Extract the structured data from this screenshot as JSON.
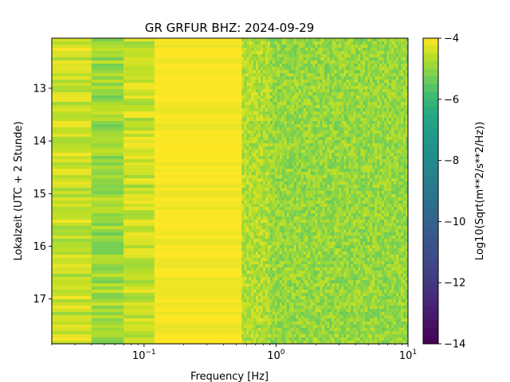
{
  "chart_data": {
    "type": "heatmap",
    "title": "GR GRFUR  BHZ: 2024-09-29",
    "xlabel": "Frequency [Hz]",
    "ylabel": "Lokalzeit (UTC + 2 Stunde)",
    "x_scale": "log",
    "xlim": [
      0.02,
      10
    ],
    "ylim": [
      17.85,
      12.05
    ],
    "x_ticks": [
      {
        "value": 0.1,
        "base": "10",
        "exp": "−1"
      },
      {
        "value": 1,
        "base": "10",
        "exp": "0"
      },
      {
        "value": 10,
        "base": "10",
        "exp": "1"
      }
    ],
    "y_ticks": [
      {
        "value": 13,
        "label": "13"
      },
      {
        "value": 14,
        "label": "14"
      },
      {
        "value": 15,
        "label": "15"
      },
      {
        "value": 16,
        "label": "16"
      },
      {
        "value": 17,
        "label": "17"
      }
    ],
    "colorbar": {
      "label": "Log10(Sqrt(m**2/s**2/Hz))",
      "colormap": "viridis",
      "range": [
        -14,
        -4
      ],
      "ticks": [
        {
          "value": -4,
          "label": "−4"
        },
        {
          "value": -6,
          "label": "−6"
        },
        {
          "value": -8,
          "label": "−8"
        },
        {
          "value": -10,
          "label": "−10"
        },
        {
          "value": -12,
          "label": "−12"
        },
        {
          "value": -14,
          "label": "−14"
        }
      ]
    },
    "frequency_bands": [
      {
        "f_min": 0.02,
        "f_max": 0.04,
        "level": -4.5
      },
      {
        "f_min": 0.04,
        "f_max": 0.07,
        "level": -4.9
      },
      {
        "f_min": 0.07,
        "f_max": 0.12,
        "level": -4.5
      },
      {
        "f_min": 0.12,
        "f_max": 0.55,
        "level": -4.05
      },
      {
        "f_min": 0.55,
        "f_max": 0.9,
        "level": -4.7
      },
      {
        "f_min": 0.9,
        "f_max": 10,
        "level": -4.95
      }
    ]
  }
}
